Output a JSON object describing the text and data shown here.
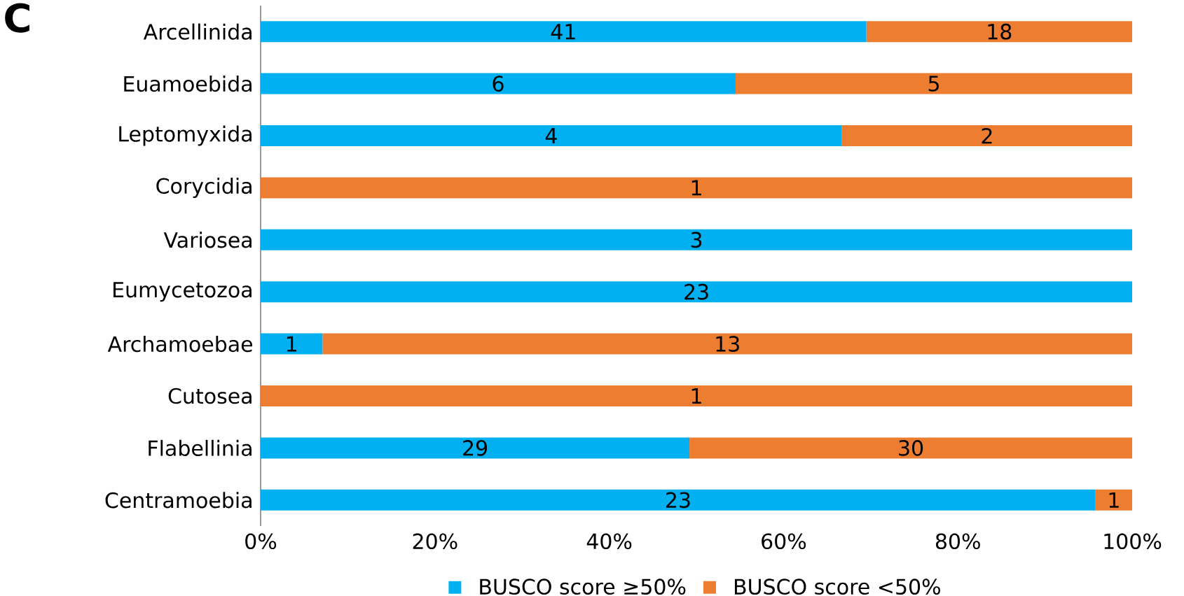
{
  "chart_data": {
    "type": "bar",
    "orientation": "horizontal",
    "stacked": true,
    "title": "C",
    "categories": [
      "Arcellinida",
      "Euamoebida",
      "Leptomyxida",
      "Corycidia",
      "Variosea",
      "Eumycetozoa",
      "Archamoebae",
      "Cutosea",
      "Flabellinia",
      "Centramoebia"
    ],
    "series": [
      {
        "name": "BUSCO score ≥50%",
        "color": "#00b0f0",
        "values": [
          69.5,
          54.5,
          66.7,
          0,
          100,
          100,
          7.1,
          0,
          49.2,
          95.8
        ]
      },
      {
        "name": "BUSCO score <50%",
        "color": "#ed7d31",
        "values": [
          30.5,
          45.5,
          33.3,
          100,
          0,
          0,
          92.9,
          100,
          50.8,
          4.2
        ]
      }
    ],
    "annotations": [
      "41",
      "18",
      "6",
      "5",
      "4",
      "2",
      "1",
      "3",
      "23",
      "1",
      "13",
      "1",
      "29",
      "30",
      "23",
      "1"
    ],
    "xlim": [
      0,
      100
    ],
    "xticks": [
      {
        "value": 0,
        "label": "0%"
      },
      {
        "value": 20,
        "label": "20%"
      },
      {
        "value": 40,
        "label": "40%"
      },
      {
        "value": 60,
        "label": "60%"
      },
      {
        "value": 80,
        "label": "80%"
      },
      {
        "value": 100,
        "label": "100%"
      }
    ],
    "legend": "bottom"
  }
}
